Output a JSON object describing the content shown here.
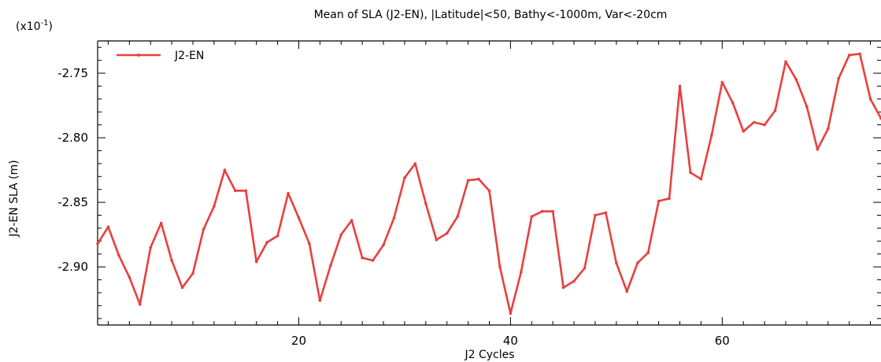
{
  "chart_data": {
    "type": "line",
    "title": "Mean of SLA (J2-EN), |Latitude|<50, Bathy<-1000m, Var<-20cm",
    "scale_note_base": "(x10",
    "scale_note_exp": "-1",
    "scale_note_end": ")",
    "xlabel": "J2 Cycles",
    "ylabel": "J2-EN SLA (m)",
    "xlim": [
      1,
      75
    ],
    "ylim": [
      -2.945,
      -2.725
    ],
    "x_ticks": [
      20,
      40,
      60
    ],
    "x_tick_labels": [
      "20",
      "40",
      "60"
    ],
    "y_ticks": [
      -2.75,
      -2.8,
      -2.85,
      -2.9
    ],
    "y_tick_labels": [
      "-2.75",
      "-2.80",
      "-2.85",
      "-2.90"
    ],
    "grid": false,
    "legend_position": "top-left",
    "color": "#e8403f",
    "series": [
      {
        "name": "J2-EN",
        "x": [
          1,
          2,
          3,
          4,
          5,
          6,
          7,
          8,
          9,
          10,
          11,
          12,
          13,
          14,
          15,
          16,
          17,
          18,
          19,
          20,
          21,
          22,
          23,
          24,
          25,
          26,
          27,
          28,
          29,
          30,
          31,
          32,
          33,
          34,
          35,
          36,
          37,
          38,
          39,
          40,
          41,
          42,
          43,
          44,
          45,
          46,
          47,
          48,
          49,
          50,
          51,
          52,
          53,
          54,
          55,
          56,
          57,
          58,
          59,
          60,
          61,
          62,
          63,
          64,
          65,
          66,
          67,
          68,
          69,
          70,
          71,
          72,
          73,
          74,
          75
        ],
        "values": [
          -2.882,
          -2.869,
          -2.891,
          -2.908,
          -2.929,
          -2.885,
          -2.866,
          -2.895,
          -2.916,
          -2.905,
          -2.871,
          -2.853,
          -2.825,
          -2.841,
          -2.841,
          -2.896,
          -2.881,
          -2.876,
          -2.843,
          -2.862,
          -2.882,
          -2.926,
          -2.899,
          -2.875,
          -2.864,
          -2.893,
          -2.895,
          -2.883,
          -2.862,
          -2.831,
          -2.82,
          -2.851,
          -2.879,
          -2.874,
          -2.861,
          -2.833,
          -2.832,
          -2.841,
          -2.9,
          -2.936,
          -2.904,
          -2.861,
          -2.857,
          -2.857,
          -2.916,
          -2.911,
          -2.901,
          -2.86,
          -2.858,
          -2.897,
          -2.919,
          -2.897,
          -2.889,
          -2.849,
          -2.847,
          -2.76,
          -2.827,
          -2.832,
          -2.798,
          -2.757,
          -2.773,
          -2.795,
          -2.788,
          -2.79,
          -2.779,
          -2.741,
          -2.755,
          -2.776,
          -2.809,
          -2.793,
          -2.754,
          -2.736,
          -2.735,
          -2.77,
          -2.785
        ]
      }
    ]
  }
}
